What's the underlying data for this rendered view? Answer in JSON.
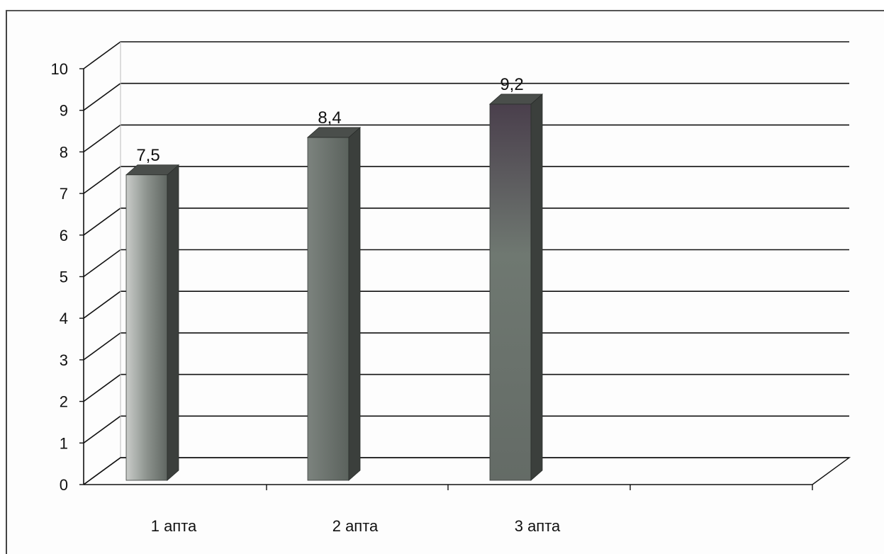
{
  "chart_data": {
    "type": "bar",
    "categories": [
      "1 апта",
      "2 апта",
      "3 апта"
    ],
    "values": [
      7.5,
      8.4,
      9.2
    ],
    "data_labels": [
      "7,5",
      "8,4",
      "9,2"
    ],
    "title": "",
    "xlabel": "",
    "ylabel": "",
    "ylim": [
      0,
      10
    ],
    "yticks": [
      "0",
      "1",
      "2",
      "3",
      "4",
      "5",
      "6",
      "7",
      "8",
      "9",
      "10"
    ],
    "grid": true,
    "style": "3d-column",
    "colors": {
      "bar_front": "#6e746f",
      "bar_side": "#3b3f3c",
      "bar_top": "#4a4e4b",
      "grid": "#111111",
      "text": "#111111"
    }
  }
}
